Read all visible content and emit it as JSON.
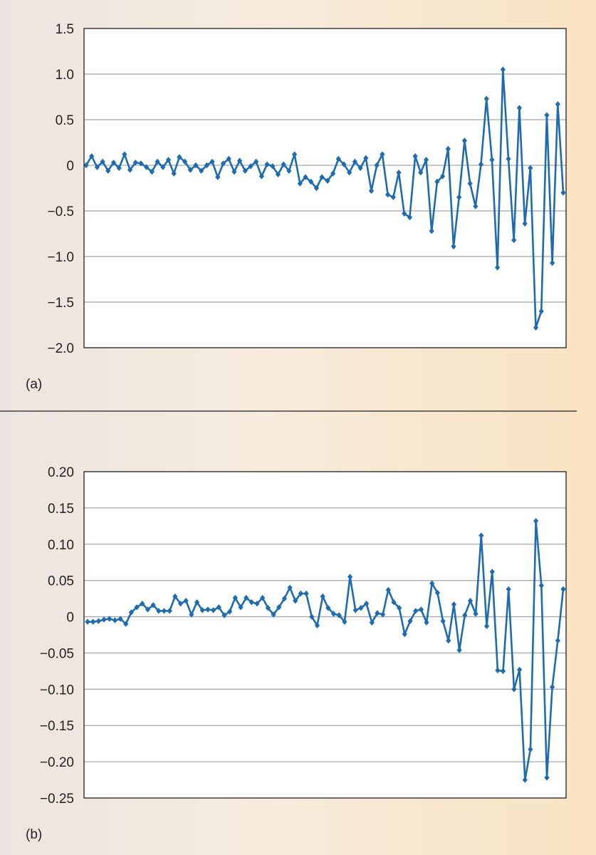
{
  "colors": {
    "line": "#1e6bb0",
    "grid": "#a7a9ac",
    "frame": "#231f20",
    "plot_bg": "#ffffff",
    "divider": "#231f20"
  },
  "chart_data": [
    {
      "type": "line",
      "panel_label": "(a)",
      "title": "",
      "xlabel": "",
      "ylabel": "",
      "ylim": [
        -2.0,
        1.5
      ],
      "yticks": [
        1.5,
        1.0,
        0.5,
        0,
        -0.5,
        -1.0,
        -1.5,
        -2.0
      ],
      "ytick_labels": [
        "1.5",
        "1.0",
        "0.5",
        "0",
        "−0.5",
        "−1.0",
        "−1.5",
        "−2.0"
      ],
      "grid": true,
      "markers": "diamond",
      "series": [
        {
          "values": [
            0.0,
            0.1,
            -0.02,
            0.04,
            -0.06,
            0.03,
            -0.03,
            0.12,
            -0.05,
            0.03,
            0.02,
            -0.02,
            -0.07,
            0.04,
            -0.02,
            0.06,
            -0.09,
            0.09,
            0.04,
            -0.05,
            0.0,
            -0.06,
            0.0,
            0.04,
            -0.13,
            0.02,
            0.07,
            -0.07,
            0.05,
            -0.06,
            -0.01,
            0.04,
            -0.12,
            0.01,
            -0.01,
            -0.1,
            0.01,
            -0.06,
            0.12,
            -0.2,
            -0.13,
            -0.18,
            -0.25,
            -0.13,
            -0.17,
            -0.09,
            0.07,
            0.01,
            -0.08,
            0.04,
            -0.03,
            0.08,
            -0.28,
            0.0,
            0.12,
            -0.32,
            -0.35,
            -0.08,
            -0.53,
            -0.57,
            0.1,
            -0.08,
            0.06,
            -0.72,
            -0.18,
            -0.12,
            0.18,
            -0.89,
            -0.35,
            0.27,
            -0.2,
            -0.45,
            0.01,
            0.73,
            0.06,
            -1.12,
            1.05,
            0.07,
            -0.82,
            0.63,
            -0.64,
            -0.03,
            -1.78,
            -1.6,
            0.55,
            -1.07,
            0.67,
            -0.3
          ]
        }
      ]
    },
    {
      "type": "line",
      "panel_label": "(b)",
      "title": "",
      "xlabel": "",
      "ylabel": "",
      "ylim": [
        -0.25,
        0.2
      ],
      "yticks": [
        0.2,
        0.15,
        0.1,
        0.05,
        0,
        -0.05,
        -0.1,
        -0.15,
        -0.2,
        -0.25
      ],
      "ytick_labels": [
        "0.20",
        "0.15",
        "0.10",
        "0.05",
        "0",
        "−0.05",
        "−0.10",
        "−0.15",
        "−0.20",
        "−0.25"
      ],
      "grid": true,
      "markers": "diamond",
      "series": [
        {
          "values": [
            -0.007,
            -0.007,
            -0.006,
            -0.004,
            -0.003,
            -0.005,
            -0.003,
            -0.01,
            0.006,
            0.013,
            0.018,
            0.01,
            0.016,
            0.008,
            0.008,
            0.008,
            0.028,
            0.018,
            0.022,
            0.003,
            0.02,
            0.009,
            0.01,
            0.009,
            0.013,
            0.002,
            0.007,
            0.026,
            0.013,
            0.026,
            0.02,
            0.018,
            0.026,
            0.012,
            0.003,
            0.013,
            0.025,
            0.04,
            0.022,
            0.032,
            0.032,
            0.0,
            -0.012,
            0.028,
            0.012,
            0.004,
            0.002,
            -0.007,
            0.055,
            0.009,
            0.012,
            0.018,
            -0.008,
            0.005,
            0.003,
            0.037,
            0.02,
            0.012,
            -0.024,
            -0.006,
            0.008,
            0.01,
            -0.008,
            0.046,
            0.033,
            -0.006,
            -0.033,
            0.017,
            -0.046,
            0.002,
            0.022,
            0.004,
            0.112,
            -0.013,
            0.062,
            -0.074,
            -0.075,
            0.038,
            -0.1,
            -0.073,
            -0.225,
            -0.183,
            0.132,
            0.043,
            -0.222,
            -0.097,
            -0.033,
            0.038
          ]
        }
      ]
    }
  ]
}
